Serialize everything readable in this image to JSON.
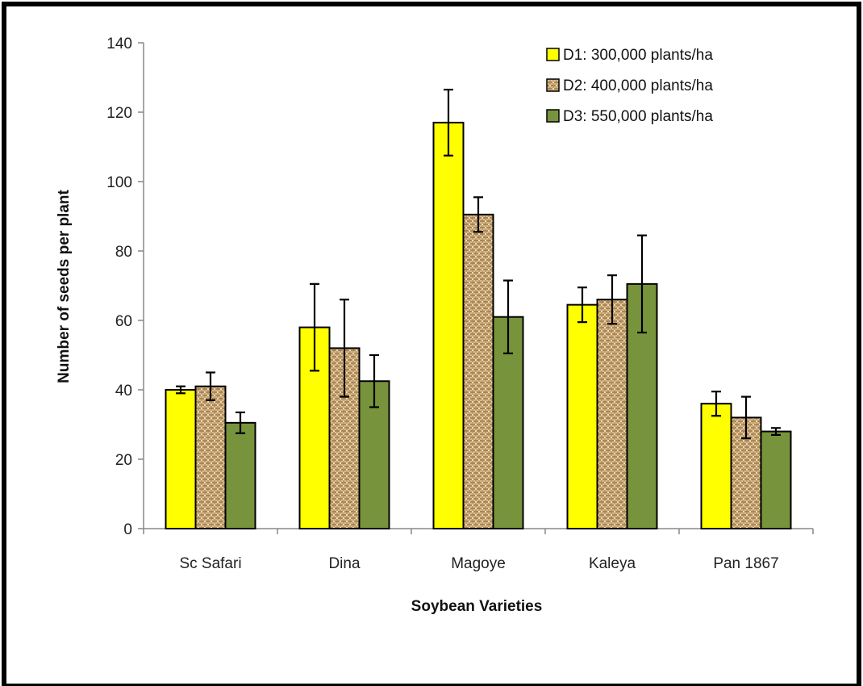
{
  "chart_data": {
    "type": "bar",
    "title": "",
    "xlabel": "Soybean Varieties",
    "ylabel": "Number of seeds per plant",
    "ylim": [
      0,
      140
    ],
    "yticks": [
      0,
      20,
      40,
      60,
      80,
      100,
      120,
      140
    ],
    "categories": [
      "Sc Safari",
      "Dina",
      "Magoye",
      "Kaleya",
      "Pan 1867"
    ],
    "series": [
      {
        "name": "D1: 300,000 plants/ha",
        "color": "#ffff00",
        "pattern": "solid",
        "values": [
          40,
          58,
          117,
          64.5,
          36
        ],
        "errors": [
          1,
          12.5,
          9.5,
          5,
          3.5
        ]
      },
      {
        "name": "D2: 400,000 plants/ha",
        "color": "#c9a571",
        "pattern": "burlap",
        "values": [
          41,
          52,
          90.5,
          66,
          32
        ],
        "errors": [
          4,
          14,
          5,
          7,
          6
        ]
      },
      {
        "name": "D3: 550,000 plants/ha",
        "color": "#77933c",
        "pattern": "solid",
        "values": [
          30.5,
          42.5,
          61,
          70.5,
          28
        ],
        "errors": [
          3,
          7.5,
          10.5,
          14,
          1
        ]
      }
    ],
    "legend_position": "top-right",
    "grid": false,
    "error_bars": true
  }
}
